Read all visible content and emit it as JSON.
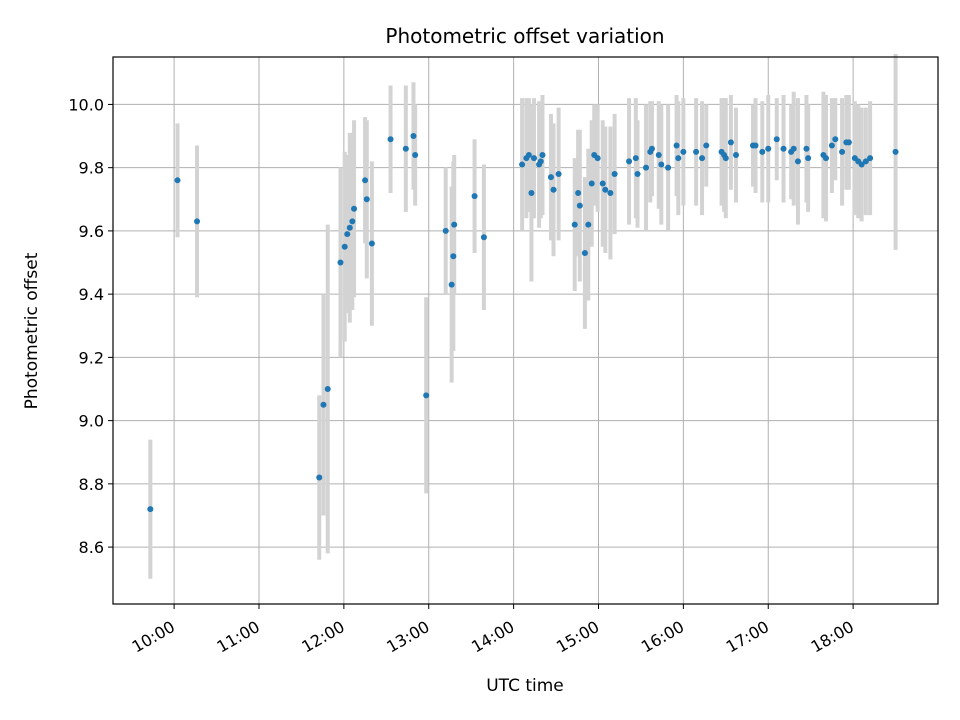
{
  "chart_data": {
    "type": "scatter",
    "title": "Photometric offset variation",
    "xlabel": "UTC time",
    "ylabel": "Photometric offset",
    "x_unit": "hours UTC",
    "xlim": [
      9.28,
      19.0
    ],
    "ylim": [
      8.42,
      10.15
    ],
    "x_ticks": [
      10,
      11,
      12,
      13,
      14,
      15,
      16,
      17,
      18
    ],
    "x_tick_labels": [
      "10:00",
      "11:00",
      "12:00",
      "13:00",
      "14:00",
      "15:00",
      "16:00",
      "17:00",
      "18:00"
    ],
    "y_ticks": [
      8.6,
      8.8,
      9.0,
      9.2,
      9.4,
      9.6,
      9.8,
      10.0
    ],
    "y_tick_labels": [
      "8.6",
      "8.8",
      "9.0",
      "9.2",
      "9.4",
      "9.6",
      "9.8",
      "10.0"
    ],
    "grid": true,
    "colors": {
      "marker": "#1f77b4",
      "errorbar": "#d3d3d3",
      "grid": "#b0b0b0"
    },
    "series": [
      {
        "x": [
          9.72,
          10.04,
          10.27,
          11.71,
          11.76,
          11.81,
          11.96,
          12.01,
          12.04,
          12.07,
          12.1,
          12.12,
          12.25,
          12.27,
          12.33,
          12.55,
          12.73,
          12.82,
          12.84,
          12.97,
          13.2,
          13.27,
          13.29,
          13.3,
          13.54,
          13.65,
          14.1,
          14.15,
          14.18,
          14.21,
          14.24,
          14.3,
          14.32,
          14.34,
          14.44,
          14.47,
          14.53,
          14.72,
          14.76,
          14.78,
          14.84,
          14.88,
          14.92,
          14.95,
          14.99,
          15.05,
          15.08,
          15.14,
          15.19,
          15.36,
          15.44,
          15.46,
          15.56,
          15.61,
          15.63,
          15.71,
          15.74,
          15.82,
          15.92,
          15.94,
          16.0,
          16.15,
          16.22,
          16.27,
          16.45,
          16.48,
          16.5,
          16.56,
          16.62,
          16.82,
          16.85,
          16.93,
          17.0,
          17.1,
          17.18,
          17.27,
          17.3,
          17.35,
          17.45,
          17.47,
          17.65,
          17.68,
          17.75,
          17.79,
          17.87,
          17.92,
          17.95,
          18.02,
          18.06,
          18.1,
          18.15,
          18.2,
          18.5
        ],
        "y": [
          8.72,
          9.76,
          9.63,
          8.82,
          9.05,
          9.1,
          9.5,
          9.55,
          9.59,
          9.61,
          9.63,
          9.67,
          9.76,
          9.7,
          9.56,
          9.89,
          9.86,
          9.9,
          9.84,
          9.08,
          9.6,
          9.43,
          9.52,
          9.62,
          9.71,
          9.58,
          9.81,
          9.83,
          9.84,
          9.72,
          9.83,
          9.81,
          9.82,
          9.84,
          9.77,
          9.73,
          9.78,
          9.62,
          9.72,
          9.68,
          9.53,
          9.62,
          9.75,
          9.84,
          9.83,
          9.75,
          9.73,
          9.72,
          9.78,
          9.82,
          9.83,
          9.78,
          9.8,
          9.85,
          9.86,
          9.84,
          9.81,
          9.8,
          9.87,
          9.83,
          9.85,
          9.85,
          9.83,
          9.87,
          9.85,
          9.84,
          9.83,
          9.88,
          9.84,
          9.87,
          9.87,
          9.85,
          9.86,
          9.89,
          9.86,
          9.85,
          9.86,
          9.82,
          9.86,
          9.83,
          9.84,
          9.83,
          9.87,
          9.89,
          9.85,
          9.88,
          9.88,
          9.83,
          9.82,
          9.81,
          9.82,
          9.83,
          9.85
        ],
        "yerr": [
          0.22,
          0.18,
          0.24,
          0.26,
          0.35,
          0.52,
          0.3,
          0.3,
          0.25,
          0.3,
          0.28,
          0.28,
          0.2,
          0.25,
          0.26,
          0.17,
          0.2,
          0.17,
          0.16,
          0.31,
          0.2,
          0.31,
          0.3,
          0.22,
          0.18,
          0.23,
          0.21,
          0.19,
          0.18,
          0.28,
          0.19,
          0.2,
          0.18,
          0.19,
          0.2,
          0.21,
          0.21,
          0.21,
          0.2,
          0.24,
          0.24,
          0.24,
          0.2,
          0.16,
          0.17,
          0.2,
          0.2,
          0.21,
          0.19,
          0.2,
          0.19,
          0.17,
          0.2,
          0.16,
          0.15,
          0.17,
          0.19,
          0.2,
          0.16,
          0.18,
          0.17,
          0.17,
          0.18,
          0.13,
          0.17,
          0.18,
          0.19,
          0.15,
          0.15,
          0.13,
          0.15,
          0.16,
          0.17,
          0.13,
          0.17,
          0.15,
          0.18,
          0.2,
          0.17,
          0.17,
          0.2,
          0.2,
          0.15,
          0.13,
          0.17,
          0.15,
          0.15,
          0.18,
          0.18,
          0.18,
          0.17,
          0.18,
          0.31
        ]
      }
    ]
  }
}
